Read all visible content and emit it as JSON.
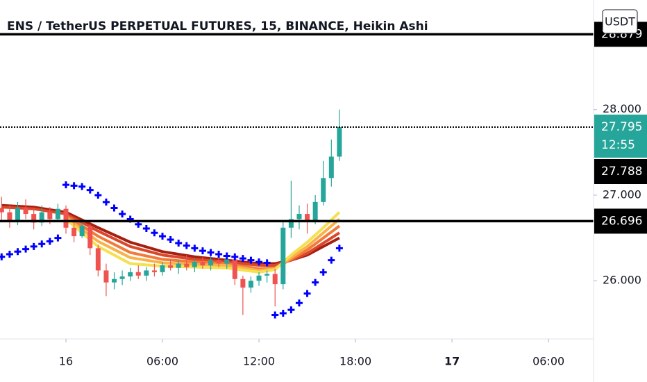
{
  "chart_data": {
    "type": "candlestick",
    "title": "ENS / TetherUS PERPETUAL FUTURES, 15, BINANCE, Heikin Ashi",
    "currency": "USDT",
    "x": [
      -4,
      -3.5,
      -3,
      -2.5,
      -2,
      -1.5,
      -1,
      -0.5,
      0,
      0.5,
      1,
      1.5,
      2,
      2.5,
      3,
      3.5,
      4,
      4.5,
      5,
      5.5,
      6,
      6.5,
      7,
      7.5,
      8,
      8.5,
      9,
      9.5,
      10,
      10.5,
      11,
      11.5,
      12,
      12.5,
      13,
      13.5,
      14,
      14.5,
      15,
      15.5,
      16,
      16.5,
      17
    ],
    "open": [
      26.85,
      26.8,
      26.7,
      26.85,
      26.78,
      26.68,
      26.8,
      26.72,
      26.84,
      26.62,
      26.52,
      26.64,
      26.38,
      26.12,
      25.98,
      26.02,
      26.05,
      26.1,
      26.06,
      26.12,
      26.1,
      26.18,
      26.15,
      26.2,
      26.16,
      26.22,
      26.18,
      26.24,
      26.2,
      26.25,
      26.02,
      25.92,
      26.0,
      26.06,
      26.08,
      25.96,
      26.62,
      26.72,
      26.78,
      26.7,
      26.92,
      27.2,
      27.45
    ],
    "high": [
      26.98,
      26.88,
      26.92,
      26.95,
      26.85,
      26.88,
      26.86,
      26.9,
      26.88,
      26.7,
      26.68,
      26.66,
      26.42,
      26.2,
      26.1,
      26.12,
      26.15,
      26.18,
      26.16,
      26.2,
      26.22,
      26.25,
      26.24,
      26.3,
      26.26,
      26.28,
      26.3,
      26.32,
      26.3,
      26.28,
      26.06,
      26.05,
      26.1,
      26.12,
      26.14,
      26.7,
      27.17,
      26.88,
      26.9,
      27.0,
      27.4,
      27.65,
      28.0
    ],
    "low": [
      26.7,
      26.62,
      26.65,
      26.72,
      26.6,
      26.64,
      26.66,
      26.7,
      26.55,
      26.45,
      26.5,
      26.3,
      26.05,
      25.82,
      25.9,
      25.95,
      26.0,
      26.02,
      26.0,
      26.05,
      26.06,
      26.12,
      26.08,
      26.12,
      26.1,
      26.14,
      26.12,
      26.16,
      26.14,
      25.95,
      25.6,
      25.86,
      25.94,
      25.98,
      25.7,
      25.9,
      26.5,
      26.6,
      26.55,
      26.66,
      26.88,
      27.1,
      27.4
    ],
    "close": [
      26.8,
      26.7,
      26.85,
      26.78,
      26.68,
      26.8,
      26.72,
      26.84,
      26.62,
      26.52,
      26.64,
      26.38,
      26.12,
      25.98,
      26.02,
      26.05,
      26.1,
      26.06,
      26.12,
      26.1,
      26.18,
      26.15,
      26.2,
      26.16,
      26.22,
      26.18,
      26.24,
      26.2,
      26.25,
      26.02,
      25.92,
      26.0,
      26.06,
      26.08,
      25.96,
      26.62,
      26.72,
      26.78,
      26.7,
      26.92,
      27.2,
      27.45,
      27.795
    ],
    "up_color": "#26a69a",
    "down_color": "#ef5350",
    "ribbon_x": [
      -4,
      -2,
      0,
      2,
      4,
      6,
      8,
      10,
      12,
      13,
      14,
      15,
      16,
      17
    ],
    "ribbon": [
      {
        "color": "#a61f10",
        "values": [
          26.88,
          26.86,
          26.8,
          26.62,
          26.45,
          26.34,
          26.28,
          26.24,
          26.2,
          26.2,
          26.24,
          26.3,
          26.4,
          26.5
        ]
      },
      {
        "color": "#d9482a",
        "values": [
          26.86,
          26.84,
          26.78,
          26.58,
          26.4,
          26.3,
          26.25,
          26.22,
          26.18,
          26.18,
          26.24,
          26.32,
          26.44,
          26.56
        ]
      },
      {
        "color": "#f27a3a",
        "values": [
          null,
          null,
          26.76,
          26.52,
          26.33,
          26.25,
          26.22,
          26.2,
          26.14,
          26.15,
          26.25,
          26.36,
          26.5,
          26.64
        ]
      },
      {
        "color": "#f9b24a",
        "values": [
          null,
          null,
          26.74,
          26.46,
          26.27,
          26.21,
          26.19,
          26.18,
          26.12,
          26.14,
          26.27,
          26.4,
          26.56,
          26.72
        ]
      },
      {
        "color": "#f5e050",
        "values": [
          null,
          null,
          26.72,
          26.4,
          26.2,
          26.17,
          26.16,
          26.15,
          26.1,
          26.13,
          26.3,
          26.45,
          26.62,
          26.8
        ]
      }
    ],
    "sar": {
      "color": "#0000ff",
      "values": [
        26.28,
        26.31,
        26.34,
        26.37,
        26.4,
        26.43,
        26.46,
        26.5,
        27.12,
        27.11,
        27.1,
        27.06,
        27.0,
        26.92,
        26.85,
        26.78,
        26.72,
        26.66,
        26.61,
        26.56,
        26.52,
        26.48,
        26.44,
        26.41,
        26.38,
        26.35,
        26.33,
        26.31,
        26.29,
        26.28,
        26.26,
        26.24,
        26.22,
        26.21,
        25.6,
        25.62,
        25.66,
        25.74,
        25.85,
        25.98,
        26.1,
        26.24,
        26.38
      ]
    },
    "price_labels": [
      {
        "value": 28.879,
        "label": "28.879",
        "color": "#000000",
        "line": "solid"
      },
      {
        "value": 27.795,
        "label": "27.795",
        "countdown": "12:55",
        "color": "#26a69a",
        "line": "dotted"
      },
      {
        "value": 27.788,
        "label": "27.788",
        "color": "#000000"
      },
      {
        "value": 26.696,
        "label": "26.696",
        "color": "#000000",
        "line": "solid"
      }
    ],
    "xlim": [
      -4.1,
      32.8
    ],
    "xticks": [
      {
        "value": 0,
        "label": "16"
      },
      {
        "value": 6,
        "label": "06:00"
      },
      {
        "value": 12,
        "label": "12:00"
      },
      {
        "value": 18,
        "label": "18:00"
      },
      {
        "value": 24,
        "label": "17",
        "bold": true
      },
      {
        "value": 30,
        "label": "06:00"
      }
    ],
    "ylim": [
      25.32,
      29.28
    ],
    "yticks": [
      {
        "value": 26,
        "label": "26.000"
      },
      {
        "value": 27,
        "label": "27.000"
      },
      {
        "value": 28,
        "label": "28.000"
      }
    ]
  }
}
